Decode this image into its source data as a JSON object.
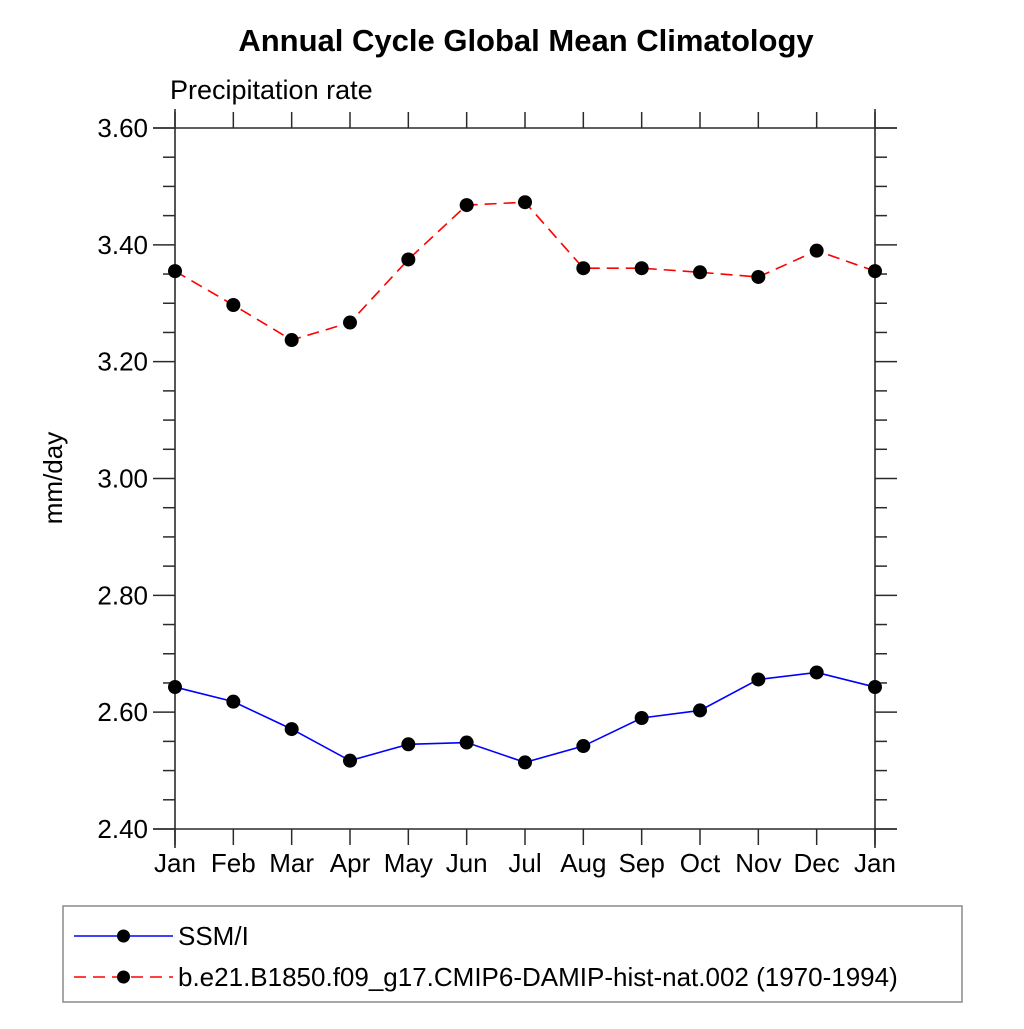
{
  "chart_data": {
    "type": "line",
    "title": "Annual Cycle Global Mean Climatology",
    "subtitle": "Precipitation rate",
    "ylabel": "mm/day",
    "categories": [
      "Jan",
      "Feb",
      "Mar",
      "Apr",
      "May",
      "Jun",
      "Jul",
      "Aug",
      "Sep",
      "Oct",
      "Nov",
      "Dec",
      "Jan"
    ],
    "ylim": [
      2.4,
      3.6
    ],
    "y_major_step": 0.2,
    "y_minor_step": 0.05,
    "y_tick_format_decimals": 2,
    "grid": false,
    "legend_position": "bottom-left-box",
    "axis_color": "#2b2b2b",
    "marker_color": "#000000",
    "series": [
      {
        "name": "SSM/I",
        "color": "#0000ff",
        "line_style": "solid",
        "marker": "filled-circle",
        "values": [
          2.643,
          2.618,
          2.571,
          2.517,
          2.545,
          2.548,
          2.514,
          2.542,
          2.59,
          2.603,
          2.656,
          2.668,
          2.643
        ]
      },
      {
        "name": "b.e21.B1850.f09_g17.CMIP6-DAMIP-hist-nat.002 (1970-1994)",
        "color": "#ff0000",
        "line_style": "dashed",
        "marker": "filled-circle",
        "values": [
          3.355,
          3.297,
          3.237,
          3.267,
          3.375,
          3.468,
          3.473,
          3.36,
          3.36,
          3.353,
          3.345,
          3.39,
          3.355
        ]
      }
    ]
  }
}
